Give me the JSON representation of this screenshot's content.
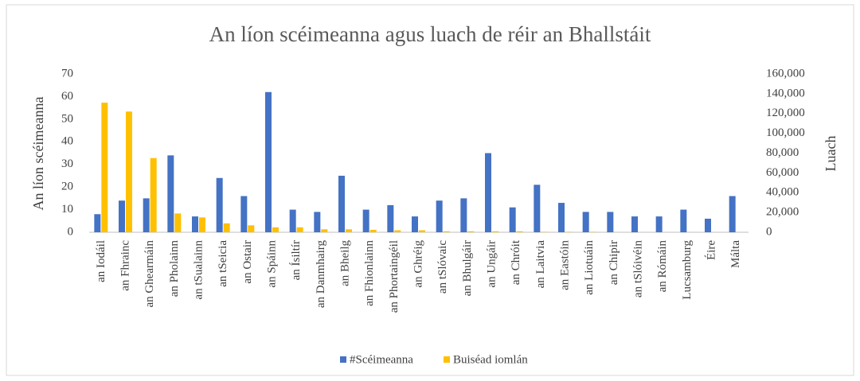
{
  "chart_data": {
    "type": "bar",
    "title": "An líon scéimeanna agus luach de réir an Bhallstáit",
    "ylabel": "An líon scéimeanna",
    "y2label": "Luach",
    "categories": [
      "an Iodáil",
      "an Fhrainc",
      "an Ghearmáin",
      "an Pholainn",
      "an tSualainn",
      "an tSeicia",
      "an Ostair",
      "an Spáinn",
      "an Ísiltír",
      "an Danmhairg",
      "an Bheilg",
      "an Fhionlainn",
      "an Phortaingéil",
      "an Ghréig",
      "an tSlóvaic",
      "an Bhulgáir",
      "an Ungáir",
      "an Chróit",
      "an Laitvia",
      "an Eastóin",
      "an Liotuáin",
      "an Chipir",
      "an tSlóivéin",
      "an Rómáin",
      "Lucsamburg",
      "Éire",
      "Málta"
    ],
    "series": [
      {
        "name": "#Scéimeanna",
        "color": "#4472c4",
        "axis": "y",
        "values": [
          8,
          14,
          15,
          34,
          7,
          24,
          16,
          62,
          10,
          9,
          25,
          10,
          12,
          7,
          14,
          15,
          35,
          11,
          21,
          13,
          9,
          9,
          7,
          7,
          10,
          6,
          16
        ]
      },
      {
        "name": "Buiséad iomlán",
        "color": "#ffc000",
        "axis": "y2",
        "values": [
          131000,
          122000,
          75000,
          19000,
          15000,
          9000,
          7000,
          5000,
          5000,
          3000,
          3000,
          2500,
          2000,
          2000,
          1000,
          1000,
          1000,
          1000,
          500,
          500,
          500,
          0,
          0,
          0,
          0,
          0,
          0
        ]
      }
    ],
    "ylim": [
      0,
      70
    ],
    "yticks": [
      0,
      10,
      20,
      30,
      40,
      50,
      60,
      70
    ],
    "y2lim": [
      0,
      160000
    ],
    "y2ticks": [
      0,
      {
        "value": 20000,
        "label": "20,000"
      },
      {
        "value": 40000,
        "label": "40,000"
      },
      {
        "value": 60000,
        "label": "60,000"
      },
      {
        "value": 80000,
        "label": "80,000"
      },
      {
        "value": 100000,
        "label": "100,000"
      },
      {
        "value": 120000,
        "label": "120,000"
      },
      {
        "value": 140000,
        "label": "140,000"
      },
      {
        "value": 160000,
        "label": "160,000"
      }
    ],
    "grid": false,
    "legend": "bottom"
  }
}
